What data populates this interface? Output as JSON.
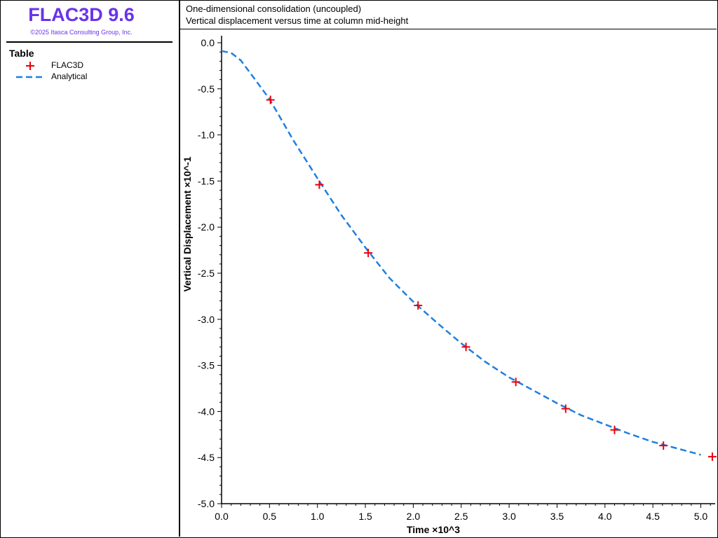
{
  "app": {
    "title": "FLAC3D 9.6",
    "copyright": "©2025 Itasca Consulting Group, Inc."
  },
  "legend": {
    "heading": "Table",
    "items": [
      {
        "label": "FLAC3D",
        "marker": "plus",
        "color": "#e8000b"
      },
      {
        "label": "Analytical",
        "marker": "dashed-line",
        "color": "#1f7fe0"
      }
    ]
  },
  "header": {
    "title": "One-dimensional consolidation (uncoupled)",
    "subtitle": "Vertical displacement versus time at column mid-height"
  },
  "chart_data": {
    "type": "line",
    "xlabel": "Time ×10^3",
    "ylabel": "Vertical Displacement ×10^-1",
    "xlim": [
      0,
      5.15
    ],
    "ylim": [
      -5.0,
      0.0
    ],
    "x_ticks": [
      0.0,
      0.5,
      1.0,
      1.5,
      2.0,
      2.5,
      3.0,
      3.5,
      4.0,
      4.5,
      5.0
    ],
    "x_tick_labels": [
      "0.0",
      "0.5",
      "1.0",
      "1.5",
      "2.0",
      "2.5",
      "3.0",
      "3.5",
      "4.0",
      "4.5",
      "5.0"
    ],
    "y_ticks": [
      0.0,
      -0.5,
      -1.0,
      -1.5,
      -2.0,
      -2.5,
      -3.0,
      -3.5,
      -4.0,
      -4.5,
      -5.0
    ],
    "y_tick_labels": [
      "0.0",
      "-0.5",
      "-1.0",
      "-1.5",
      "-2.0",
      "-2.5",
      "-3.0",
      "-3.5",
      "-4.0",
      "-4.5",
      "-5.0"
    ],
    "grid": false,
    "series": [
      {
        "name": "FLAC3D",
        "style": "markers-plus",
        "color": "#e8000b",
        "x": [
          0.51,
          1.02,
          1.53,
          2.05,
          2.55,
          3.07,
          3.59,
          4.1,
          4.61,
          5.12
        ],
        "y": [
          -0.62,
          -1.54,
          -2.28,
          -2.85,
          -3.3,
          -3.68,
          -3.97,
          -4.2,
          -4.37,
          -4.49
        ]
      },
      {
        "name": "Analytical",
        "style": "dashed-line",
        "color": "#1f7fe0",
        "x": [
          0.0,
          0.1,
          0.2,
          0.3,
          0.4,
          0.5,
          0.75,
          1.0,
          1.25,
          1.5,
          1.75,
          2.0,
          2.25,
          2.5,
          2.75,
          3.0,
          3.25,
          3.5,
          3.75,
          4.0,
          4.25,
          4.5,
          4.75,
          5.0
        ],
        "y": [
          -0.09,
          -0.11,
          -0.19,
          -0.33,
          -0.47,
          -0.61,
          -1.06,
          -1.47,
          -1.87,
          -2.22,
          -2.55,
          -2.81,
          -3.04,
          -3.26,
          -3.46,
          -3.63,
          -3.77,
          -3.91,
          -4.04,
          -4.14,
          -4.24,
          -4.33,
          -4.4,
          -4.47
        ]
      }
    ]
  }
}
